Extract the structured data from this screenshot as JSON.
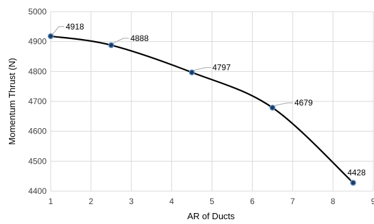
{
  "chart_data": {
    "type": "scatter",
    "title": "",
    "xlabel": "AR of Ducts",
    "ylabel": "Momentum Thrust (N)",
    "xlim": [
      1,
      9
    ],
    "ylim": [
      4400,
      5000
    ],
    "xticks": [
      1,
      2,
      3,
      4,
      5,
      6,
      7,
      8,
      9
    ],
    "yticks": [
      4400,
      4500,
      4600,
      4700,
      4800,
      4900,
      5000
    ],
    "grid": true,
    "legend": "none",
    "series": [
      {
        "x": [
          1,
          2.5,
          4.5,
          6.5,
          8.5
        ],
        "y": [
          4918,
          4888,
          4797,
          4679,
          4428
        ],
        "labels": [
          "4918",
          "4888",
          "4797",
          "4679",
          "4428"
        ],
        "line": "smooth",
        "line_color": "#000000",
        "marker_color": "#1f3a5f",
        "marker_edge_color": "#5b8fc7"
      }
    ],
    "grid_color": "#d9d9d9"
  }
}
